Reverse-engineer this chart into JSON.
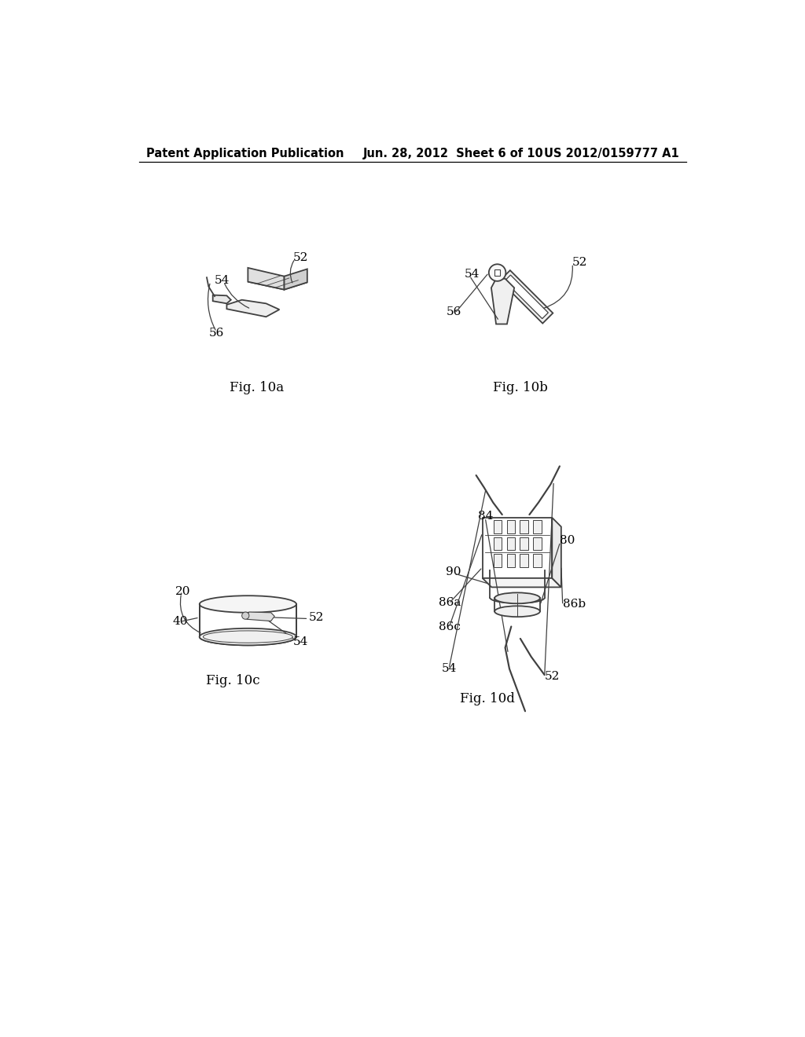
{
  "bg_color": "#ffffff",
  "header_left": "Patent Application Publication",
  "header_mid": "Jun. 28, 2012  Sheet 6 of 10",
  "header_right": "US 2012/0159777 A1",
  "line_color": "#404040",
  "label_fontsize": 11,
  "fig_label_fontsize": 12,
  "fig10a_label": "Fig. 10a",
  "fig10b_label": "Fig. 10b",
  "fig10c_label": "Fig. 10c",
  "fig10d_label": "Fig. 10d"
}
